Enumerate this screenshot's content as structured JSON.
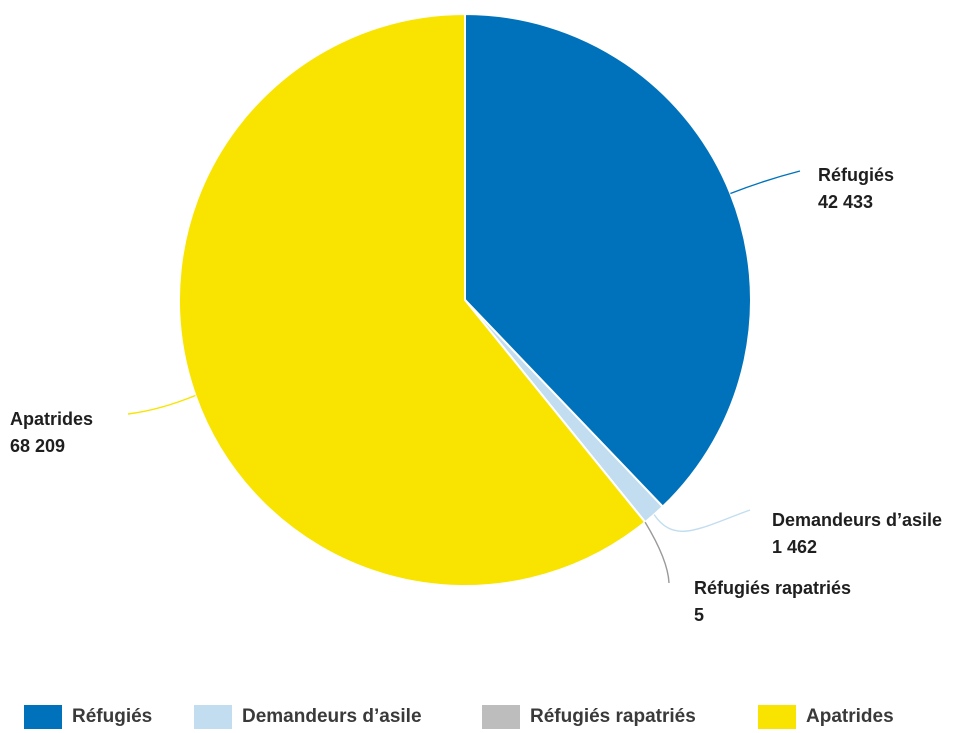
{
  "chart_data": {
    "type": "pie",
    "categories": [
      "Réfugiés",
      "Demandeurs d’asile",
      "Réfugiés rapatriés",
      "Apatrides"
    ],
    "values": [
      42433,
      1462,
      5,
      68209
    ],
    "value_labels": [
      "42 433",
      "1 462",
      "5",
      "68 209"
    ],
    "colors": [
      "#0072BC",
      "#C1DDEF",
      "#BDBDBD",
      "#F8E400"
    ],
    "legend_position": "bottom"
  }
}
